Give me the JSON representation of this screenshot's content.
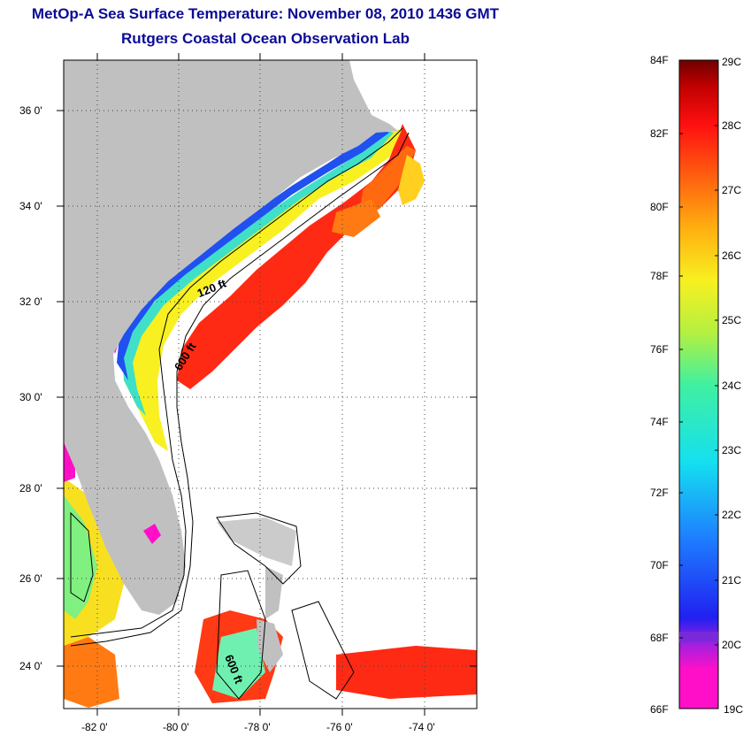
{
  "title_line1": "MetOp-A Sea Surface Temperature:  November 08, 2010 1436 GMT",
  "title_line2": "Rutgers Coastal Ocean Observation Lab",
  "map": {
    "lon_labels": [
      "-82 0'",
      "-80 0'",
      "-78 0'",
      "-76 0'",
      "-74 0'"
    ],
    "lat_labels": [
      "36 0'",
      "34 0'",
      "32 0'",
      "30 0'",
      "28 0'",
      "26 0'",
      "24 0'"
    ],
    "contour_labels": [
      "120 ft",
      "600 ft",
      "600 ft"
    ],
    "land_color": "#c0c0c0"
  },
  "colorbar": {
    "fahrenheit": [
      "84F",
      "82F",
      "80F",
      "78F",
      "76F",
      "74F",
      "72F",
      "70F",
      "68F",
      "66F"
    ],
    "celsius": [
      "29C",
      "28C",
      "27C",
      "26C",
      "25C",
      "24C",
      "23C",
      "22C",
      "21C",
      "20C",
      "19C"
    ],
    "colors": [
      "#ff10c8",
      "#a020e0",
      "#2020f0",
      "#1e7cff",
      "#14e0f0",
      "#40f0a0",
      "#b4f040",
      "#f8f020",
      "#ffb010",
      "#ff6010",
      "#ff1010",
      "#c00000",
      "#6e0000"
    ]
  }
}
